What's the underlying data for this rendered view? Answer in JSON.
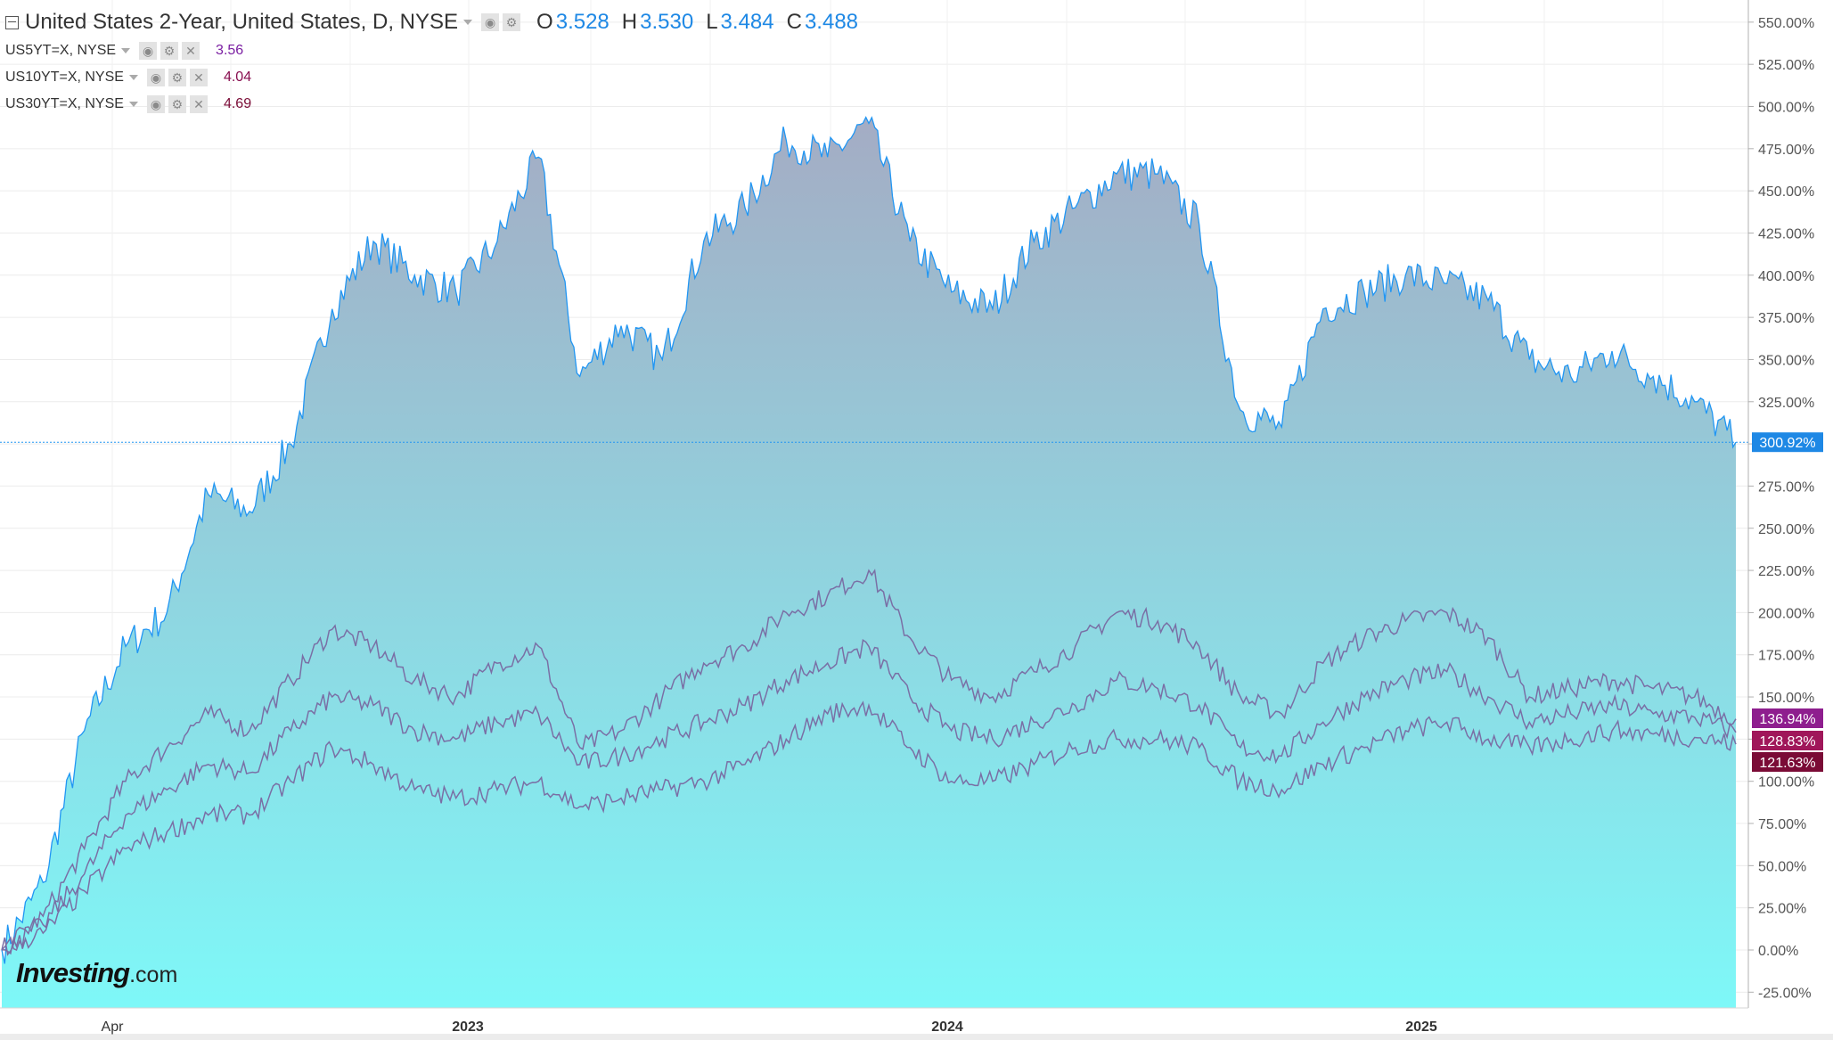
{
  "header": {
    "title": "United States 2-Year, United States, D, NYSE",
    "ohlc": [
      {
        "label": "O",
        "value": "3.528"
      },
      {
        "label": "H",
        "value": "3.530"
      },
      {
        "label": "L",
        "value": "3.484"
      },
      {
        "label": "C",
        "value": "3.488"
      }
    ]
  },
  "overlays": [
    {
      "label": "US5YT=X, NYSE",
      "value": "3.56",
      "color": "#7b1fa2"
    },
    {
      "label": "US10YT=X, NYSE",
      "value": "4.04",
      "color": "#880e4f"
    },
    {
      "label": "US30YT=X, NYSE",
      "value": "4.69",
      "color": "#7a0b36"
    }
  ],
  "watermark": {
    "main": "Investing",
    "suffix": ".com"
  },
  "icons": [
    "collapse-icon",
    "eye-icon",
    "gear-icon",
    "close-icon",
    "chevron-down-icon"
  ],
  "chart_data": {
    "type": "area",
    "ylim": [
      -25,
      550
    ],
    "y_ticks": [
      "550.00%",
      "525.00%",
      "500.00%",
      "475.00%",
      "450.00%",
      "425.00%",
      "400.00%",
      "375.00%",
      "350.00%",
      "325.00%",
      "300.00%",
      "275.00%",
      "250.00%",
      "225.00%",
      "200.00%",
      "175.00%",
      "150.00%",
      "125.00%",
      "100.00%",
      "75.00%",
      "50.00%",
      "25.00%",
      "0.00%",
      "-25.00%"
    ],
    "x_ticks": [
      "Apr",
      "2023",
      "2024",
      "2025"
    ],
    "x": [
      "2022-02",
      "2022-03",
      "2022-04",
      "2022-05",
      "2022-06",
      "2022-07",
      "2022-08",
      "2022-09",
      "2022-10",
      "2022-11",
      "2022-12",
      "2023-01",
      "2023-02",
      "2023-03",
      "2023-04",
      "2023-05",
      "2023-06",
      "2023-07",
      "2023-08",
      "2023-09",
      "2023-10",
      "2023-11",
      "2023-12",
      "2024-01",
      "2024-02",
      "2024-03",
      "2024-04",
      "2024-05",
      "2024-06",
      "2024-07",
      "2024-08",
      "2024-09",
      "2024-10",
      "2024-11",
      "2024-12",
      "2025-01",
      "2025-02",
      "2025-03",
      "2025-04",
      "2025-05",
      "2025-06",
      "2025-07",
      "2025-08"
    ],
    "series": [
      {
        "name": "United States 2-Year",
        "color": "#2196f3",
        "last_label": "300.92%",
        "fill_top": "#a4acc4",
        "fill_bottom": "#7ef8f8",
        "values": [
          0,
          40,
          130,
          180,
          200,
          270,
          260,
          300,
          380,
          420,
          400,
          390,
          420,
          470,
          340,
          370,
          350,
          420,
          440,
          480,
          470,
          490,
          420,
          390,
          380,
          420,
          440,
          460,
          460,
          430,
          320,
          310,
          380,
          390,
          400,
          395,
          385,
          350,
          340,
          355,
          340,
          325,
          301
        ]
      },
      {
        "name": "US5YT=X, NYSE",
        "color": "#7a6fa5",
        "last_label": "136.94%",
        "label_bg": "#8e1e8e",
        "values": [
          0,
          20,
          60,
          100,
          120,
          140,
          130,
          160,
          190,
          180,
          160,
          150,
          170,
          180,
          120,
          130,
          150,
          170,
          180,
          200,
          210,
          225,
          185,
          160,
          150,
          165,
          180,
          200,
          195,
          180,
          150,
          140,
          170,
          185,
          195,
          200,
          185,
          150,
          155,
          160,
          155,
          150,
          137
        ]
      },
      {
        "name": "US10YT=X, NYSE",
        "color": "#7a6fa5",
        "last_label": "128.83%",
        "label_bg": "#a0175a",
        "values": [
          0,
          15,
          45,
          80,
          95,
          110,
          105,
          130,
          150,
          145,
          130,
          125,
          135,
          140,
          110,
          115,
          125,
          135,
          145,
          160,
          170,
          180,
          150,
          130,
          125,
          135,
          145,
          160,
          155,
          145,
          120,
          115,
          135,
          150,
          160,
          165,
          150,
          135,
          140,
          145,
          140,
          138,
          129
        ]
      },
      {
        "name": "US30YT=X, NYSE",
        "color": "#7a6fa5",
        "last_label": "121.63%",
        "label_bg": "#7a0b36",
        "values": [
          0,
          10,
          35,
          60,
          70,
          80,
          80,
          100,
          120,
          110,
          95,
          90,
          95,
          100,
          85,
          90,
          95,
          100,
          110,
          125,
          140,
          145,
          120,
          100,
          100,
          110,
          120,
          125,
          125,
          120,
          100,
          95,
          110,
          120,
          130,
          135,
          125,
          120,
          125,
          130,
          128,
          126,
          122
        ]
      }
    ]
  }
}
